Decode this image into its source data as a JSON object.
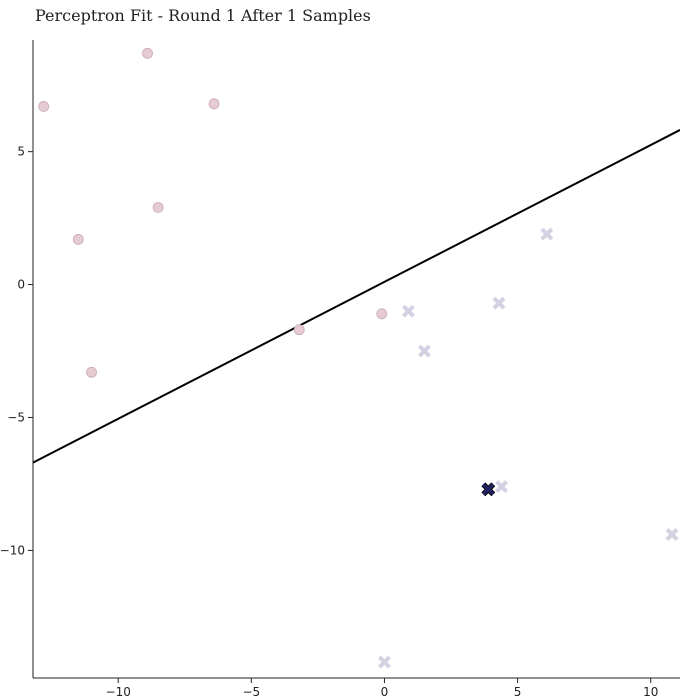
{
  "chart_data": {
    "type": "scatter",
    "title": "Perceptron Fit - Round 1 After 1 Samples",
    "xlabel": "",
    "ylabel": "",
    "xlim": [
      -13.2,
      11.1
    ],
    "ylim": [
      -14.8,
      9.2
    ],
    "x_ticks": [
      -10,
      -5,
      0,
      5,
      10
    ],
    "y_ticks": [
      5,
      0,
      -5,
      -10
    ],
    "x_tick_labels": [
      "−10",
      "−5",
      "0",
      "5",
      "10"
    ],
    "y_tick_labels": [
      "5",
      "0",
      "−5",
      "−10"
    ],
    "grid": false,
    "decision_boundary": {
      "slope": 0.515,
      "intercept": 0.1
    },
    "series": [
      {
        "marker": "circle",
        "color": "#e6cbd2",
        "points": [
          [
            -12.8,
            6.7
          ],
          [
            -8.9,
            8.7
          ],
          [
            -6.4,
            6.8
          ],
          [
            -8.5,
            2.9
          ],
          [
            -11.5,
            1.7
          ],
          [
            -11.0,
            -3.3
          ],
          [
            -3.2,
            -1.7
          ],
          [
            -0.1,
            -1.1
          ]
        ]
      },
      {
        "marker": "x",
        "color": "#d3d1e2",
        "points": [
          [
            6.1,
            1.9
          ],
          [
            4.3,
            -0.7
          ],
          [
            0.9,
            -1.0
          ],
          [
            1.5,
            -2.5
          ],
          [
            4.4,
            -7.6
          ],
          [
            10.8,
            -9.4
          ],
          [
            0.0,
            -14.2
          ]
        ]
      }
    ],
    "highlighted": {
      "marker": "x",
      "color": "#1f2160",
      "point": [
        3.9,
        -7.7
      ]
    }
  }
}
